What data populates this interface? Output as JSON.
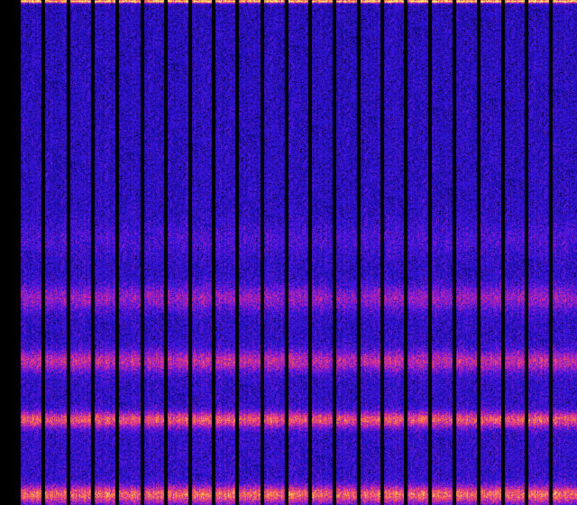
{
  "image": {
    "kind": "spectrogram heat map",
    "colormap": [
      "#000000",
      "#1a0a8c",
      "#2a14e0",
      "#8a1ad0",
      "#e0308a",
      "#ff8040",
      "#ffff80"
    ]
  }
}
